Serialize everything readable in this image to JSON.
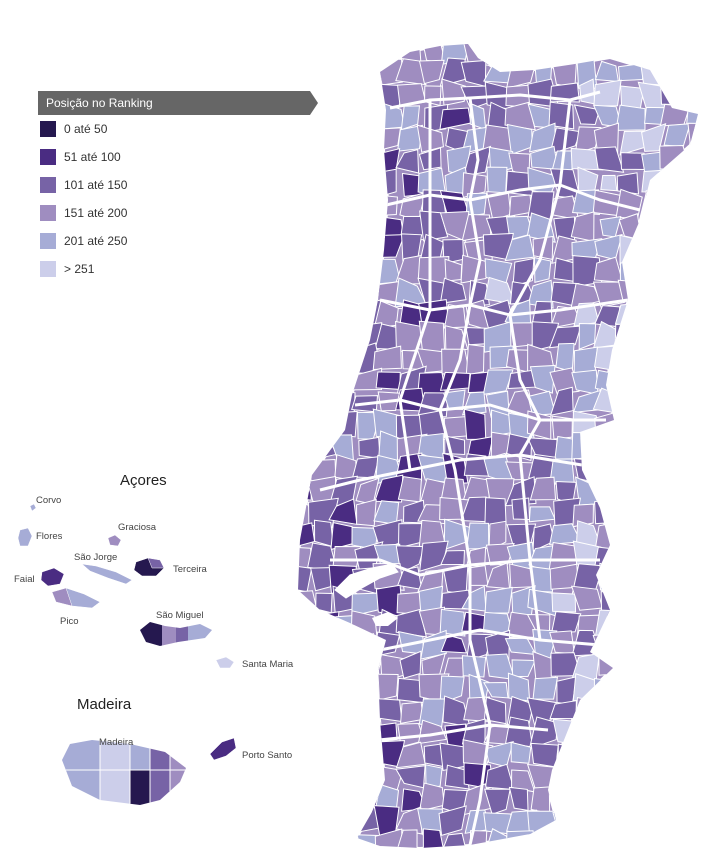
{
  "legend": {
    "title": "Posição no Ranking",
    "items": [
      {
        "label": "0 até 50",
        "color": "#25184f"
      },
      {
        "label": "51 até 100",
        "color": "#4a2c82"
      },
      {
        "label": "101 até 150",
        "color": "#7763a6"
      },
      {
        "label": "151 até 200",
        "color": "#9f8dc0"
      },
      {
        "label": "201 até 250",
        "color": "#a6acd6"
      },
      {
        "label": "> 251",
        "color": "#ccceea"
      }
    ]
  },
  "regions": {
    "acores": {
      "title": "Açores",
      "islands": [
        "Corvo",
        "Flores",
        "Graciosa",
        "São Jorge",
        "Terceira",
        "Faial",
        "Pico",
        "São Miguel",
        "Santa Maria"
      ]
    },
    "madeira": {
      "title": "Madeira",
      "islands": [
        "Madeira",
        "Porto Santo"
      ]
    }
  }
}
